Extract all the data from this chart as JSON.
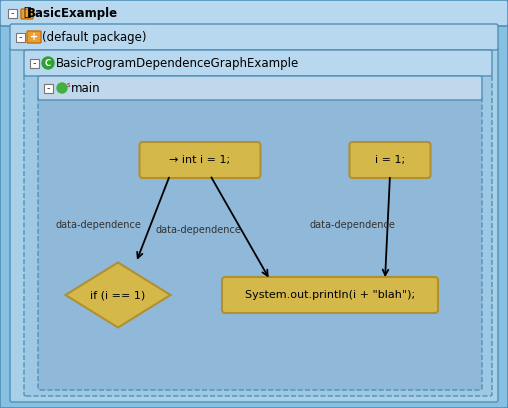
{
  "fig_width": 5.08,
  "fig_height": 4.08,
  "dpi": 100,
  "bg_outer": "#87c0e0",
  "bg_panel1": "#a8d0e8",
  "bg_panel2": "#9ec8e4",
  "bg_panel3": "#90b8d8",
  "bg_inner": "#8ab0cc",
  "header_color": "#b0d4ec",
  "node_fill": "#d4b84a",
  "node_edge": "#b09030",
  "node_text_color": "#000000",
  "arrow_color": "#000000",
  "label_color": "#333333",
  "title_color": "#000000",
  "outer_title": "BasicExample",
  "level1_title": "(default package)",
  "level2_title": "BasicProgramDependenceGraphExample",
  "level3_title": "main",
  "node1_label": "→ int i = 1;",
  "node2_label": "i = 1;",
  "node3_label": "if (i == 1)",
  "node4_label": "System.out.println(i + \"blah\");",
  "dep_label": "data-dependence",
  "font_size_title": 8.5,
  "font_size_node": 8,
  "font_size_dep": 7
}
